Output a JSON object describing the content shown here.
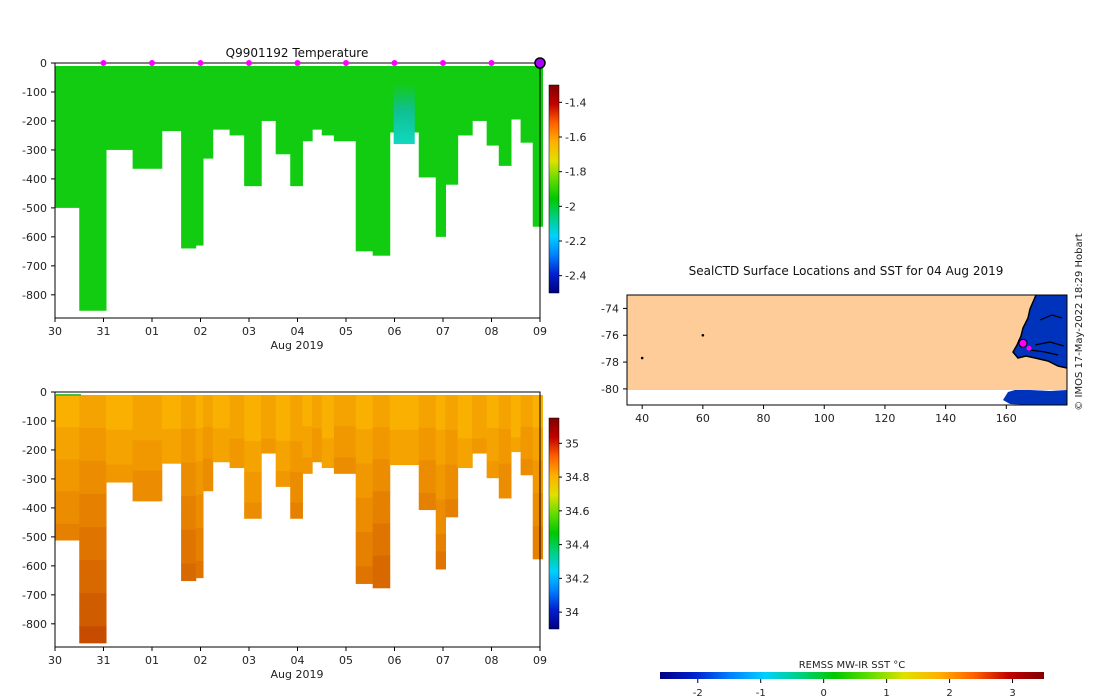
{
  "chart_data": [
    {
      "type": "heatmap",
      "title": "Q9901192  Temperature",
      "xlabel": "Aug 2019",
      "x_tick_labels": [
        "30",
        "31",
        "01",
        "02",
        "03",
        "04",
        "05",
        "06",
        "07",
        "08",
        "09"
      ],
      "x_range_days": [
        0,
        10
      ],
      "y_ticks": [
        0,
        -100,
        -200,
        -300,
        -400,
        -500,
        -600,
        -700,
        -800
      ],
      "ylim": [
        -880,
        0
      ],
      "colorbar": {
        "ticks": [
          -1.4,
          -1.6,
          -1.8,
          -2,
          -2.2,
          -2.4
        ],
        "range": [
          -2.5,
          -1.3
        ],
        "colors": [
          "#000080",
          "#0020d0",
          "#0080ff",
          "#00d0ff",
          "#00d080",
          "#00c800",
          "#60dd00",
          "#e0e000",
          "#ffb000",
          "#ff6000",
          "#c00000",
          "#800000"
        ]
      },
      "dominant_color": "#12cc12",
      "surface_markers": [
        1,
        2,
        3,
        4,
        5,
        6,
        7,
        8,
        9
      ],
      "end_marker": 10,
      "profile_depths": [
        [
          0,
          0.5,
          500
        ],
        [
          0.5,
          1.05,
          855
        ],
        [
          1.05,
          1.6,
          300
        ],
        [
          1.6,
          2.2,
          365
        ],
        [
          2.2,
          2.6,
          235
        ],
        [
          2.6,
          2.9,
          640
        ],
        [
          2.9,
          3.05,
          630
        ],
        [
          3.05,
          3.25,
          330
        ],
        [
          3.25,
          3.6,
          230
        ],
        [
          3.6,
          3.9,
          250
        ],
        [
          3.9,
          4.25,
          425
        ],
        [
          4.25,
          4.55,
          200
        ],
        [
          4.55,
          4.85,
          315
        ],
        [
          4.85,
          5.1,
          425
        ],
        [
          5.1,
          5.3,
          270
        ],
        [
          5.3,
          5.5,
          230
        ],
        [
          5.5,
          5.75,
          250
        ],
        [
          5.75,
          6.2,
          270
        ],
        [
          6.2,
          6.55,
          650
        ],
        [
          6.55,
          6.9,
          665
        ],
        [
          6.9,
          7.5,
          240
        ],
        [
          7.5,
          7.85,
          395
        ],
        [
          7.85,
          8.05,
          600
        ],
        [
          8.05,
          8.3,
          420
        ],
        [
          8.3,
          8.6,
          250
        ],
        [
          8.6,
          8.9,
          200
        ],
        [
          8.9,
          9.15,
          285
        ],
        [
          9.15,
          9.4,
          355
        ],
        [
          9.4,
          9.6,
          195
        ],
        [
          9.6,
          9.85,
          275
        ],
        [
          9.85,
          10.05,
          565
        ]
      ]
    },
    {
      "type": "heatmap",
      "title": "",
      "xlabel": "Aug 2019",
      "x_tick_labels": [
        "30",
        "31",
        "01",
        "02",
        "03",
        "04",
        "05",
        "06",
        "07",
        "08",
        "09"
      ],
      "x_range_days": [
        0,
        10
      ],
      "y_ticks": [
        0,
        -100,
        -200,
        -300,
        -400,
        -500,
        -600,
        -700,
        -800
      ],
      "ylim": [
        -880,
        0
      ],
      "colorbar": {
        "ticks": [
          35,
          34.8,
          34.6,
          34.4,
          34.2,
          34
        ],
        "range": [
          33.9,
          35.15
        ],
        "colors": [
          "#000080",
          "#0020d0",
          "#0080ff",
          "#00d0ff",
          "#00d080",
          "#00c800",
          "#60dd00",
          "#e0e000",
          "#ffb000",
          "#ff6000",
          "#c00000",
          "#800000"
        ]
      },
      "surface_color": "#ffc000",
      "deep_color": "#d04000"
    },
    {
      "type": "heatmap",
      "title": "SealCTD Surface Locations and SST for 04 Aug 2019",
      "x_ticks": [
        40,
        60,
        80,
        100,
        120,
        140,
        160
      ],
      "y_ticks": [
        -74,
        -76,
        -78,
        -80
      ],
      "xlim": [
        35,
        180
      ],
      "ylim": [
        -81.2,
        -73
      ],
      "sst_color": "#fdcc99",
      "land_color": "#0033bb",
      "track_points": [
        [
          60,
          -76
        ],
        [
          40,
          -77.7
        ]
      ],
      "current_position": [
        165.5,
        -76.6
      ],
      "colorbar_label": "REMSS MW-IR SST °C",
      "colorbar_ticks": [
        -2,
        -1,
        0,
        1,
        2,
        3
      ],
      "colorbar_range": [
        -2.6,
        3.5
      ]
    }
  ],
  "credit": "© IMOS 17-May-2022 18:29 Hobart"
}
